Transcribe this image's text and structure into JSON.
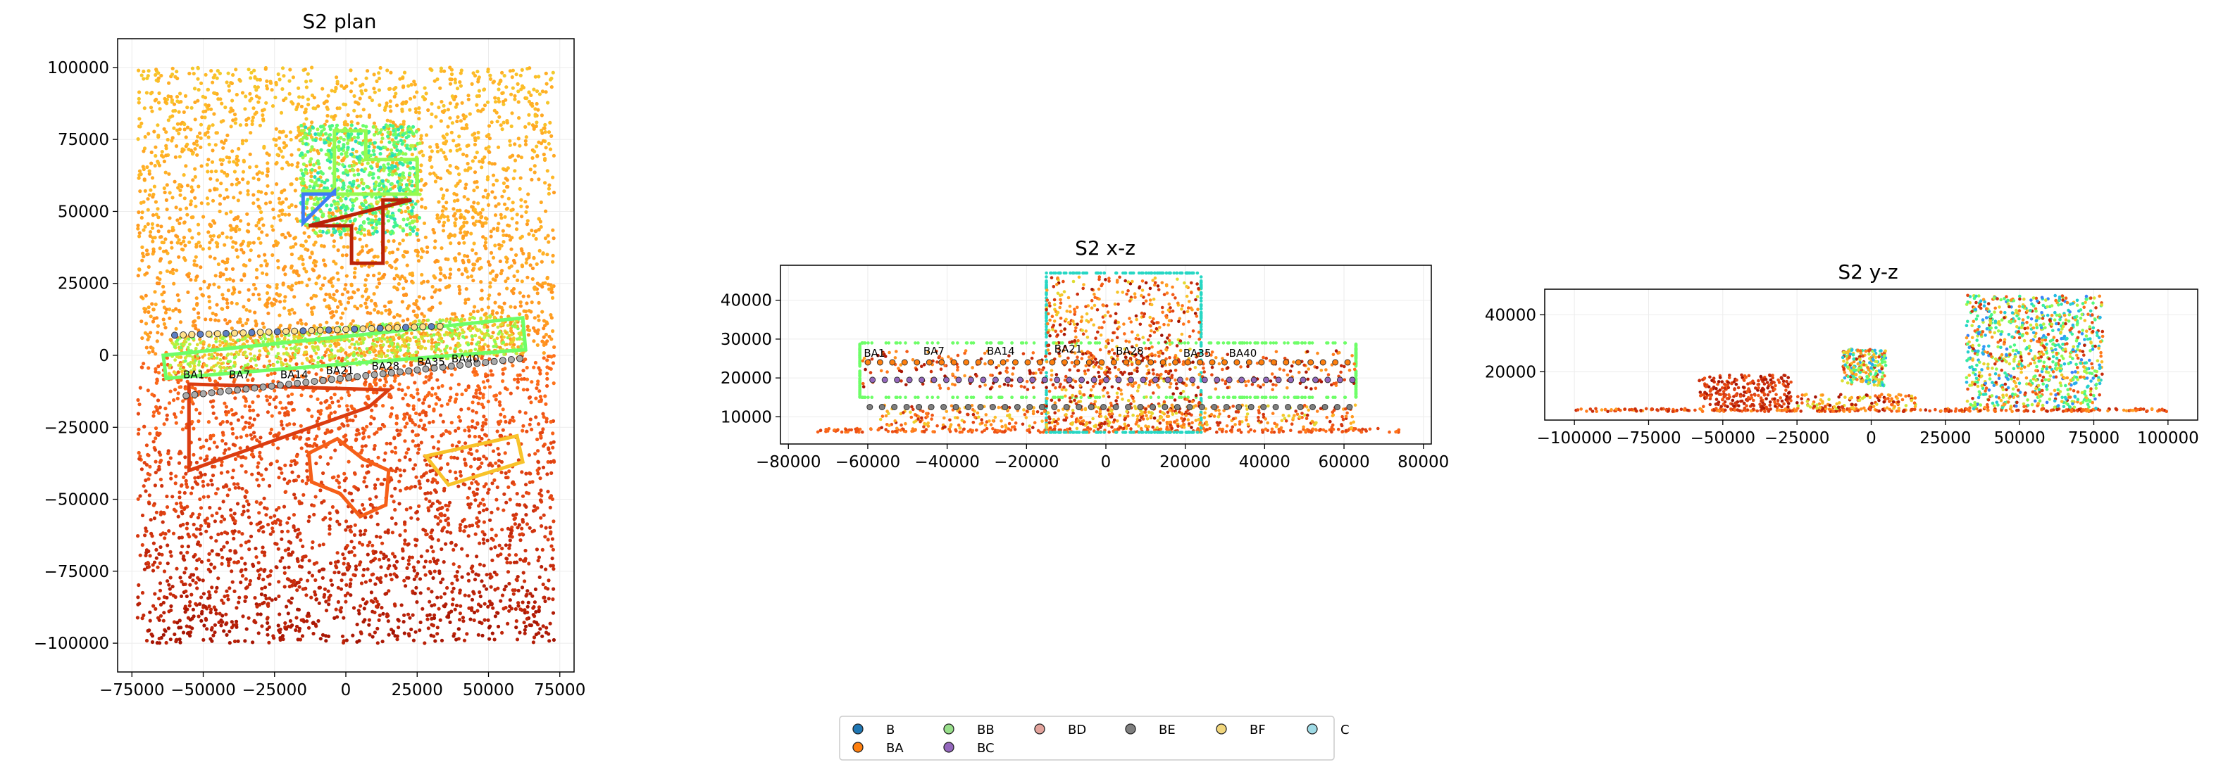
{
  "chart_data": [
    {
      "type": "scatter",
      "title": "S2 plan",
      "xlim": [
        -80000,
        80000
      ],
      "ylim": [
        -110000,
        110000
      ],
      "xticks": [
        -75000,
        -50000,
        -25000,
        0,
        25000,
        50000,
        75000
      ],
      "yticks": [
        100000,
        75000,
        50000,
        25000,
        0,
        -25000,
        -50000,
        -75000,
        -100000
      ],
      "grid": true,
      "annotations": [
        "BA1",
        "BA7",
        "BA14",
        "BA21",
        "BA28",
        "BA35",
        "BA40"
      ],
      "annotation_positions": [
        [
          -57000,
          -8000
        ],
        [
          -41000,
          -8000
        ],
        [
          -23000,
          -8000
        ],
        [
          -7000,
          -6500
        ],
        [
          9000,
          -5000
        ],
        [
          25000,
          -3500
        ],
        [
          37000,
          -2500
        ]
      ]
    },
    {
      "type": "scatter",
      "title": "S2 x-z",
      "xlim": [
        -82000,
        82000
      ],
      "ylim": [
        3000,
        49000
      ],
      "xticks": [
        -80000,
        -60000,
        -40000,
        -20000,
        0,
        20000,
        40000,
        60000,
        80000
      ],
      "yticks": [
        40000,
        30000,
        20000,
        10000
      ],
      "grid": true,
      "annotations": [
        "BA1",
        "BA7",
        "BA14",
        "BA21",
        "BA28",
        "BA35",
        "BA40"
      ],
      "annotation_positions": [
        [
          -61000,
          25500
        ],
        [
          -46000,
          26000
        ],
        [
          -30000,
          26000
        ],
        [
          -13000,
          26500
        ],
        [
          2500,
          26000
        ],
        [
          19500,
          25500
        ],
        [
          31000,
          25500
        ]
      ]
    },
    {
      "type": "scatter",
      "title": "S2 y-z",
      "xlim": [
        -110000,
        110000
      ],
      "ylim": [
        3000,
        49000
      ],
      "xticks": [
        -100000,
        -75000,
        -50000,
        -25000,
        0,
        25000,
        50000,
        75000,
        100000
      ],
      "yticks": [
        40000,
        20000
      ],
      "grid": true
    }
  ],
  "legend": {
    "placement": "bottom-center",
    "entries": [
      {
        "label": "B",
        "color": "#1f77b4"
      },
      {
        "label": "BA",
        "color": "#ff7f0e"
      },
      {
        "label": "BB",
        "color": "#98df8a"
      },
      {
        "label": "BC",
        "color": "#9467bd"
      },
      {
        "label": "BD",
        "color": "#e3a39c"
      },
      {
        "label": "BE",
        "color": "#7f7f7f"
      },
      {
        "label": "BF",
        "color": "#f1d67c"
      },
      {
        "label": "C",
        "color": "#9edae5"
      }
    ]
  }
}
